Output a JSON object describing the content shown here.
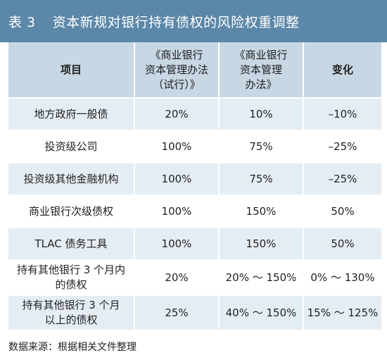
{
  "title": {
    "number": "表 3",
    "text": "资本新规对银行持有债权的风险权重调整"
  },
  "table": {
    "headers": {
      "item": "项目",
      "trial_lines": [
        "《商业银行",
        "资本管理办法",
        "（试行）》"
      ],
      "new_lines": [
        "《商业银行",
        "资本管理",
        "办法》"
      ],
      "change": "变化"
    },
    "rows": [
      {
        "item_lines": [
          "地方政府一般债"
        ],
        "trial": "20%",
        "new": "10%",
        "change": "–10%"
      },
      {
        "item_lines": [
          "投资级公司"
        ],
        "trial": "100%",
        "new": "75%",
        "change": "–25%"
      },
      {
        "item_lines": [
          "投资级其他金融机构"
        ],
        "trial": "100%",
        "new": "75%",
        "change": "–25%"
      },
      {
        "item_lines": [
          "商业银行次级债权"
        ],
        "trial": "100%",
        "new": "150%",
        "change": "50%"
      },
      {
        "item_lines": [
          "TLAC 债务工具"
        ],
        "trial": "100%",
        "new": "150%",
        "change": "50%"
      },
      {
        "item_lines": [
          "持有其他银行 3 个月内",
          "的债权"
        ],
        "trial": "20%",
        "new": "20% ～ 150%",
        "change": "0% ～ 130%"
      },
      {
        "item_lines": [
          "持有其他银行 3 个月",
          "以上的债权"
        ],
        "trial": "25%",
        "new": "40% ～ 150%",
        "change": "15% ～ 125%"
      }
    ]
  },
  "source": "数据来源：根据相关文件整理"
}
